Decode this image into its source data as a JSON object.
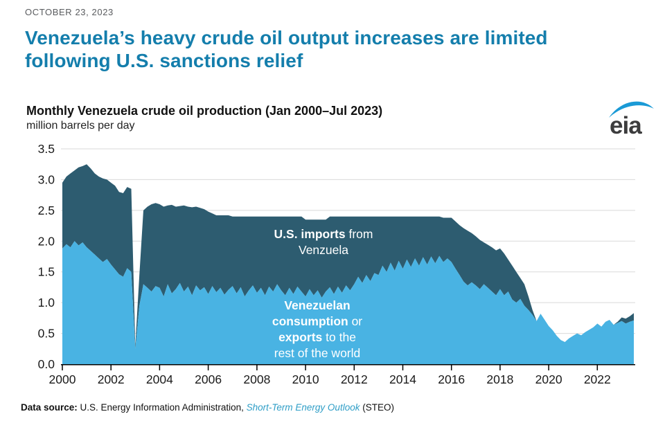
{
  "page": {
    "date": "OCTOBER 23, 2023",
    "headline_line1": "Venezuela’s heavy crude oil output increases are limited",
    "headline_line2": "following U.S. sanctions relief",
    "logo_text": "eia"
  },
  "chart": {
    "title": "Monthly Venezuela crude oil production (Jan 2000–Jul 2023)",
    "subtitle": "million barrels per day"
  },
  "annotations": {
    "imports": {
      "line1_bold": "U.S. imports",
      "line1_rest": " from",
      "line2": "Venzuela"
    },
    "consumption": {
      "line1_bold": "Venezuelan",
      "line2_bold": "consumption",
      "line2_rest": " or",
      "line3_bold": "exports",
      "line3_rest": " to the",
      "line4": "rest of the world"
    }
  },
  "footer": {
    "label_bold": "Data source:",
    "text": " U.S. Energy Information Administration, ",
    "link_italic": "Short-Term Energy Outlook",
    "suffix": " (STEO)"
  },
  "colors": {
    "headline": "#147eac",
    "area_dark": "#2d5c70",
    "area_light": "#49b3e3",
    "gridline": "#d9d9d9",
    "axis": "#000000",
    "link": "#2f9ec7",
    "logo_swoosh": "#1a9ad6",
    "logo_text": "#3c3c3d"
  },
  "chart_data": {
    "type": "area",
    "stacked": true,
    "title": "Monthly Venezuela crude oil production (Jan 2000-Jul 2023)",
    "ylabel": "million barrels per day",
    "xlabel": "",
    "ylim": [
      0,
      3.5
    ],
    "yticks": [
      0.0,
      0.5,
      1.0,
      1.5,
      2.0,
      2.5,
      3.0,
      3.5
    ],
    "xticks": [
      2000,
      2002,
      2004,
      2006,
      2008,
      2010,
      2012,
      2014,
      2016,
      2018,
      2020,
      2022
    ],
    "grid": "horizontal",
    "legend_position": "labels-on-chart",
    "x": {
      "start": 2000.0,
      "step_years": 0.16667,
      "count": 142,
      "end": 2023.5
    },
    "series": [
      {
        "name": "Venezuelan consumption or exports to the rest of the world",
        "color": "#49b3e3",
        "values": [
          1.88,
          1.95,
          1.9,
          2.0,
          1.93,
          1.98,
          1.9,
          1.84,
          1.78,
          1.72,
          1.66,
          1.71,
          1.62,
          1.54,
          1.46,
          1.42,
          1.56,
          1.5,
          0.25,
          0.95,
          1.3,
          1.24,
          1.18,
          1.27,
          1.24,
          1.1,
          1.3,
          1.15,
          1.22,
          1.32,
          1.18,
          1.26,
          1.12,
          1.28,
          1.2,
          1.25,
          1.14,
          1.27,
          1.17,
          1.24,
          1.13,
          1.21,
          1.27,
          1.15,
          1.25,
          1.1,
          1.2,
          1.28,
          1.16,
          1.24,
          1.12,
          1.26,
          1.18,
          1.3,
          1.2,
          1.12,
          1.24,
          1.14,
          1.26,
          1.18,
          1.1,
          1.22,
          1.12,
          1.2,
          1.08,
          1.18,
          1.25,
          1.14,
          1.26,
          1.16,
          1.28,
          1.2,
          1.3,
          1.42,
          1.32,
          1.45,
          1.35,
          1.48,
          1.45,
          1.6,
          1.5,
          1.65,
          1.52,
          1.68,
          1.55,
          1.7,
          1.58,
          1.72,
          1.6,
          1.74,
          1.62,
          1.75,
          1.64,
          1.76,
          1.66,
          1.72,
          1.66,
          1.55,
          1.45,
          1.34,
          1.28,
          1.33,
          1.28,
          1.22,
          1.3,
          1.24,
          1.18,
          1.12,
          1.22,
          1.12,
          1.18,
          1.05,
          1.0,
          1.06,
          0.95,
          0.88,
          0.8,
          0.7,
          0.82,
          0.72,
          0.62,
          0.55,
          0.46,
          0.39,
          0.36,
          0.42,
          0.46,
          0.5,
          0.47,
          0.52,
          0.56,
          0.6,
          0.66,
          0.61,
          0.69,
          0.72,
          0.64,
          0.67,
          0.7,
          0.66,
          0.69,
          0.71
        ]
      },
      {
        "name": "U.S. imports from Venezuela",
        "color": "#2d5c70",
        "values": [
          1.07,
          1.1,
          1.2,
          1.15,
          1.27,
          1.24,
          1.35,
          1.34,
          1.32,
          1.33,
          1.36,
          1.29,
          1.33,
          1.36,
          1.34,
          1.36,
          1.32,
          1.35,
          0.05,
          0.5,
          1.2,
          1.32,
          1.42,
          1.35,
          1.36,
          1.46,
          1.28,
          1.44,
          1.34,
          1.25,
          1.4,
          1.3,
          1.43,
          1.28,
          1.34,
          1.27,
          1.34,
          1.18,
          1.25,
          1.18,
          1.29,
          1.21,
          1.13,
          1.25,
          1.15,
          1.3,
          1.2,
          1.12,
          1.24,
          1.16,
          1.28,
          1.14,
          1.22,
          1.1,
          1.2,
          1.28,
          1.16,
          1.26,
          1.14,
          1.22,
          1.25,
          1.13,
          1.23,
          1.15,
          1.27,
          1.17,
          1.15,
          1.26,
          1.14,
          1.24,
          1.12,
          1.2,
          1.1,
          0.98,
          1.08,
          0.95,
          1.05,
          0.92,
          0.95,
          0.8,
          0.9,
          0.75,
          0.88,
          0.72,
          0.85,
          0.7,
          0.82,
          0.68,
          0.8,
          0.66,
          0.78,
          0.65,
          0.76,
          0.64,
          0.72,
          0.66,
          0.72,
          0.77,
          0.81,
          0.87,
          0.89,
          0.8,
          0.8,
          0.8,
          0.68,
          0.7,
          0.72,
          0.73,
          0.66,
          0.68,
          0.52,
          0.55,
          0.5,
          0.34,
          0.35,
          0.22,
          0.08,
          0.0,
          0.0,
          0.0,
          0.0,
          0.0,
          0.0,
          0.0,
          0.0,
          0.0,
          0.0,
          0.0,
          0.0,
          0.0,
          0.0,
          0.0,
          0.0,
          0.0,
          0.0,
          0.0,
          0.0,
          0.02,
          0.06,
          0.08,
          0.09,
          0.12
        ]
      }
    ]
  }
}
